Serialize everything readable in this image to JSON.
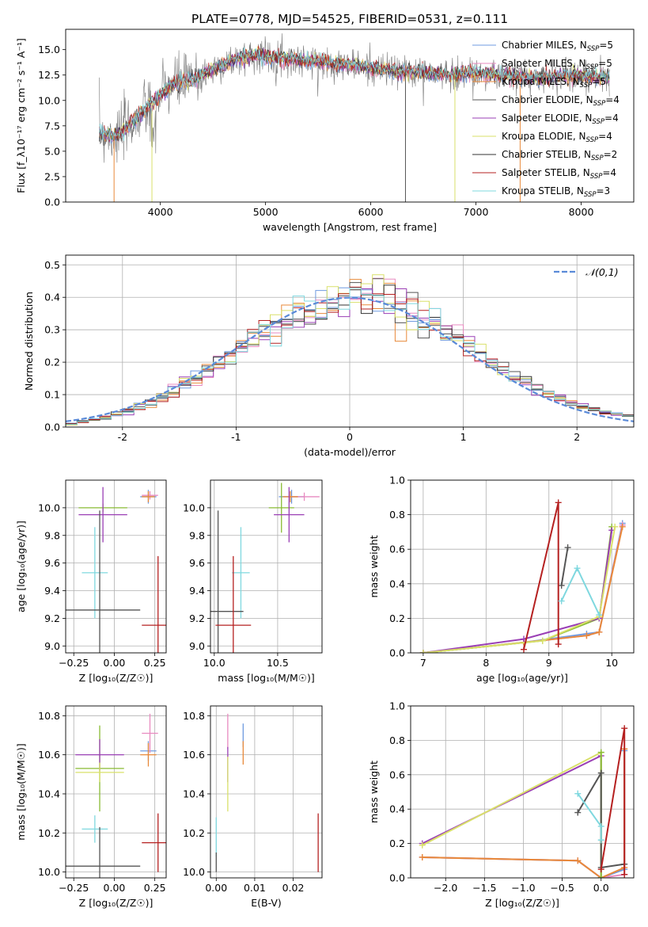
{
  "figure_title": "PLATE=0778, MJD=54525, FIBERID=0531, z=0.111",
  "colors": {
    "chabrier_miles": "#6f9be0",
    "salpeter_miles": "#e88ac0",
    "kroupa_miles": "#e8893a",
    "chabrier_elodie": "#555555",
    "salpeter_elodie": "#9a3fb5",
    "kroupa_elodie": "#d9e06a",
    "chabrier_stelib": "#333333",
    "salpeter_stelib": "#b52020",
    "kroupa_stelib": "#7fd8df",
    "green": "#88bb33",
    "normal_curve": "#5a8ad8"
  },
  "chart_data": [
    {
      "id": "spectrum",
      "type": "line",
      "title": "",
      "xlabel": "wavelength [Angstrom, rest frame]",
      "ylabel": "Flux [f_λ10⁻¹⁷ erg cm⁻² s⁻¹ A⁻¹]",
      "xlim": [
        3100,
        8500
      ],
      "ylim": [
        0,
        17
      ],
      "xticks": [
        4000,
        5000,
        6000,
        7000,
        8000
      ],
      "yticks": [
        0.0,
        2.5,
        5.0,
        7.5,
        10.0,
        12.5,
        15.0
      ],
      "grid": false,
      "legend_position": "upper right",
      "legend": [
        {
          "label": "Chabrier MILES, N",
          "sub": "SSP",
          "tail": "=5",
          "color": "#6f9be0"
        },
        {
          "label": "Salpeter MILES, N",
          "sub": "SSP",
          "tail": "=5",
          "color": "#e88ac0"
        },
        {
          "label": "Kroupa MILES, N",
          "sub": "SSP",
          "tail": "=5",
          "color": "#e8893a"
        },
        {
          "label": "Chabrier ELODIE, N",
          "sub": "SSP",
          "tail": "=4",
          "color": "#555555"
        },
        {
          "label": "Salpeter ELODIE, N",
          "sub": "SSP",
          "tail": "=4",
          "color": "#9a3fb5"
        },
        {
          "label": "Kroupa ELODIE, N",
          "sub": "SSP",
          "tail": "=4",
          "color": "#d9e06a"
        },
        {
          "label": "Chabrier STELIB, N",
          "sub": "SSP",
          "tail": "=2",
          "color": "#333333"
        },
        {
          "label": "Salpeter STELIB, N",
          "sub": "SSP",
          "tail": "=4",
          "color": "#b52020"
        },
        {
          "label": "Kroupa STELIB, N",
          "sub": "SSP",
          "tail": "=3",
          "color": "#7fd8df"
        }
      ],
      "envelope": {
        "x": [
          3420,
          3600,
          3800,
          3950,
          4100,
          4300,
          4500,
          4700,
          4900,
          5100,
          5300,
          5500,
          5800,
          6100,
          6400,
          6700,
          7000,
          7300,
          7600,
          7900,
          8200,
          8270
        ],
        "y": [
          6.8,
          6.5,
          8.5,
          10.0,
          11.5,
          12.0,
          13.0,
          14.0,
          14.5,
          14.2,
          14.0,
          13.8,
          13.5,
          13.0,
          12.8,
          12.5,
          12.7,
          12.4,
          12.2,
          12.5,
          12.3,
          12.2
        ]
      },
      "dropouts": [
        {
          "x": 3560,
          "color": "#e8893a"
        },
        {
          "x": 3920,
          "color": "#d9e06a"
        },
        {
          "x": 6330,
          "color": "#555555"
        },
        {
          "x": 6800,
          "color": "#d9e06a"
        },
        {
          "x": 7420,
          "color": "#e8893a"
        }
      ]
    },
    {
      "id": "residuals",
      "type": "histogram",
      "xlabel": "(data-model)/error",
      "ylabel": "Normed distribution",
      "xlim": [
        -2.5,
        2.5
      ],
      "ylim": [
        0,
        0.53
      ],
      "xticks": [
        -2,
        -1,
        0,
        1,
        2
      ],
      "yticks": [
        0.0,
        0.1,
        0.2,
        0.3,
        0.4,
        0.5
      ],
      "grid": true,
      "legend_position": "upper right",
      "legend": [
        {
          "label": "𝒩(0,1)",
          "color": "#5a8ad8",
          "style": "dashed"
        }
      ],
      "bin_width": 0.1
    },
    {
      "id": "age_vs_Z",
      "type": "errorbar",
      "xlabel": "Z [log₁₀(Z/Z☉)]",
      "ylabel": "age  [log₁₀(age/yr)]",
      "xlim": [
        -0.3,
        0.32
      ],
      "ylim": [
        8.95,
        10.2
      ],
      "xticks": [
        -0.25,
        0.0,
        0.25
      ],
      "xticklabels": [
        "−0.25",
        "0.00",
        "0.25"
      ],
      "yticks": [
        9.0,
        9.2,
        9.4,
        9.6,
        9.8,
        10.0
      ],
      "grid": true,
      "points": [
        {
          "x": 0.21,
          "y": 10.08,
          "xerr": 0.05,
          "yerr": 0.05,
          "color": "#6f9be0"
        },
        {
          "x": 0.22,
          "y": 10.09,
          "xerr": 0.05,
          "yerr": 0.03,
          "color": "#e88ac0"
        },
        {
          "x": 0.21,
          "y": 10.08,
          "xerr": 0.04,
          "yerr": 0.04,
          "color": "#e8893a"
        },
        {
          "x": -0.07,
          "y": 10.0,
          "xerr": 0.15,
          "yerr": 0.03,
          "color": "#88bb33"
        },
        {
          "x": -0.07,
          "y": 9.95,
          "xerr": 0.15,
          "yerr": 0.2,
          "color": "#9a3fb5"
        },
        {
          "x": -0.12,
          "y": 9.53,
          "xerr": 0.08,
          "yerr": 0.33,
          "color": "#7fd8df"
        },
        {
          "x": -0.09,
          "y": 9.26,
          "xerr": 0.25,
          "yerr": 0.72,
          "color": "#555555"
        },
        {
          "x": 0.27,
          "y": 9.15,
          "xerr": 0.1,
          "yerr": 0.5,
          "color": "#b52020"
        }
      ]
    },
    {
      "id": "age_vs_mass",
      "type": "errorbar",
      "xlabel": "mass [log₁₀(M/M☉)]",
      "ylabel": "",
      "xlim": [
        9.97,
        10.85
      ],
      "ylim": [
        8.95,
        10.2
      ],
      "xticks": [
        10.0,
        10.5
      ],
      "xticklabels": [
        "10.0",
        "10.5"
      ],
      "yticks": [
        9.0,
        9.2,
        9.4,
        9.6,
        9.8,
        10.0
      ],
      "grid": true,
      "points": [
        {
          "x": 10.61,
          "y": 10.08,
          "xerr": 0.1,
          "yerr": 0.05,
          "color": "#6f9be0"
        },
        {
          "x": 10.71,
          "y": 10.08,
          "xerr": 0.12,
          "yerr": 0.03,
          "color": "#e88ac0"
        },
        {
          "x": 10.6,
          "y": 10.08,
          "xerr": 0.06,
          "yerr": 0.04,
          "color": "#e8893a"
        },
        {
          "x": 10.53,
          "y": 10.0,
          "xerr": 0.1,
          "yerr": 0.18,
          "color": "#88bb33"
        },
        {
          "x": 10.59,
          "y": 9.95,
          "xerr": 0.12,
          "yerr": 0.2,
          "color": "#9a3fb5"
        },
        {
          "x": 10.21,
          "y": 9.53,
          "xerr": 0.07,
          "yerr": 0.33,
          "color": "#7fd8df"
        },
        {
          "x": 10.03,
          "y": 9.25,
          "xerr": 0.2,
          "yerr": 0.73,
          "color": "#555555"
        },
        {
          "x": 10.15,
          "y": 9.15,
          "xerr": 0.14,
          "yerr": 0.5,
          "color": "#b52020"
        }
      ]
    },
    {
      "id": "mass_weight_vs_age",
      "type": "line",
      "xlabel": "age  [log₁₀(age/yr)]",
      "ylabel": "mass weight",
      "xlim": [
        6.8,
        10.35
      ],
      "ylim": [
        0,
        1.0
      ],
      "xticks": [
        7,
        8,
        9,
        10
      ],
      "yticks": [
        0.0,
        0.2,
        0.4,
        0.6,
        0.8,
        1.0
      ],
      "grid": true,
      "series": [
        {
          "color": "#6f9be0",
          "x": [
            7.0,
            8.6,
            9.6,
            9.8,
            10.17
          ],
          "y": [
            0.0,
            0.06,
            0.11,
            0.12,
            0.75
          ]
        },
        {
          "color": "#e88ac0",
          "x": [
            7.0,
            8.6,
            9.6,
            9.8,
            10.17
          ],
          "y": [
            0.0,
            0.06,
            0.1,
            0.12,
            0.74
          ]
        },
        {
          "color": "#e8893a",
          "x": [
            7.0,
            8.6,
            9.6,
            9.8,
            10.17
          ],
          "y": [
            0.0,
            0.06,
            0.1,
            0.12,
            0.73
          ]
        },
        {
          "color": "#88bb33",
          "x": [
            7.0,
            8.9,
            9.8,
            10.0
          ],
          "y": [
            0.0,
            0.07,
            0.2,
            0.73
          ]
        },
        {
          "color": "#9a3fb5",
          "x": [
            7.0,
            8.6,
            9.8,
            10.0
          ],
          "y": [
            0.0,
            0.08,
            0.2,
            0.71
          ]
        },
        {
          "color": "#d9e06a",
          "x": [
            7.0,
            8.9,
            9.8,
            10.05
          ],
          "y": [
            0.0,
            0.07,
            0.21,
            0.73
          ]
        },
        {
          "color": "#555555",
          "x": [
            9.2,
            9.3
          ],
          "y": [
            0.39,
            0.61
          ]
        },
        {
          "color": "#b52020",
          "x": [
            8.6,
            9.15,
            9.15
          ],
          "y": [
            0.02,
            0.87,
            0.05
          ]
        },
        {
          "color": "#7fd8df",
          "x": [
            9.2,
            9.45,
            9.8
          ],
          "y": [
            0.3,
            0.49,
            0.22
          ]
        }
      ]
    },
    {
      "id": "mass_vs_Z",
      "type": "errorbar",
      "xlabel": "Z [log₁₀(Z/Z☉)]",
      "ylabel": "mass [log₁₀(M/M☉)]",
      "xlim": [
        -0.3,
        0.32
      ],
      "ylim": [
        9.97,
        10.85
      ],
      "xticks": [
        -0.25,
        0.0,
        0.25
      ],
      "xticklabels": [
        "−0.25",
        "0.00",
        "0.25"
      ],
      "yticks": [
        10.0,
        10.2,
        10.4,
        10.6,
        10.8
      ],
      "grid": true,
      "points": [
        {
          "x": 0.21,
          "y": 10.62,
          "xerr": 0.05,
          "yerr": 0.05,
          "color": "#6f9be0"
        },
        {
          "x": 0.22,
          "y": 10.71,
          "xerr": 0.05,
          "yerr": 0.1,
          "color": "#e88ac0"
        },
        {
          "x": 0.21,
          "y": 10.6,
          "xerr": 0.05,
          "yerr": 0.06,
          "color": "#e8893a"
        },
        {
          "x": -0.09,
          "y": 10.53,
          "xerr": 0.15,
          "yerr": 0.22,
          "color": "#88bb33"
        },
        {
          "x": -0.09,
          "y": 10.6,
          "xerr": 0.15,
          "yerr": 0.08,
          "color": "#9a3fb5"
        },
        {
          "x": -0.09,
          "y": 10.51,
          "xerr": 0.15,
          "yerr": 0.05,
          "color": "#d9e06a"
        },
        {
          "x": -0.12,
          "y": 10.22,
          "xerr": 0.08,
          "yerr": 0.07,
          "color": "#7fd8df"
        },
        {
          "x": -0.09,
          "y": 10.03,
          "xerr": 0.25,
          "yerr": 0.2,
          "color": "#555555"
        },
        {
          "x": 0.27,
          "y": 10.15,
          "xerr": 0.1,
          "yerr": 0.15,
          "color": "#b52020"
        }
      ]
    },
    {
      "id": "mass_vs_ebv",
      "type": "errorbar",
      "xlabel": "E(B-V)",
      "ylabel": "",
      "xlim": [
        -0.0015,
        0.0275
      ],
      "ylim": [
        9.97,
        10.85
      ],
      "xticks": [
        0.0,
        0.01,
        0.02
      ],
      "xticklabels": [
        "0.00",
        "0.01",
        "0.02"
      ],
      "yticks": [
        10.0,
        10.2,
        10.4,
        10.6,
        10.8
      ],
      "grid": true,
      "points": [
        {
          "x": 0.007,
          "y": 10.7,
          "xerr": 0,
          "yerr": 0.06,
          "color": "#6f9be0"
        },
        {
          "x": 0.003,
          "y": 10.72,
          "xerr": 0,
          "yerr": 0.09,
          "color": "#e88ac0"
        },
        {
          "x": 0.007,
          "y": 10.61,
          "xerr": 0,
          "yerr": 0.06,
          "color": "#e8893a"
        },
        {
          "x": 0.003,
          "y": 10.55,
          "xerr": 0,
          "yerr": 0.09,
          "color": "#9a3fb5"
        },
        {
          "x": 0.003,
          "y": 10.45,
          "xerr": 0,
          "yerr": 0.14,
          "color": "#d9e06a"
        },
        {
          "x": 0.0,
          "y": 10.18,
          "xerr": 0,
          "yerr": 0.1,
          "color": "#7fd8df"
        },
        {
          "x": 0.0,
          "y": 10.05,
          "xerr": 0,
          "yerr": 0.05,
          "color": "#555555"
        },
        {
          "x": 0.0265,
          "y": 10.15,
          "xerr": 0,
          "yerr": 0.15,
          "color": "#b52020"
        }
      ]
    },
    {
      "id": "mass_weight_vs_Z",
      "type": "line",
      "xlabel": "Z [log₁₀(Z/Z☉)]",
      "ylabel": "mass weight",
      "xlim": [
        -2.45,
        0.42
      ],
      "ylim": [
        0,
        1.0
      ],
      "xticks": [
        -2.0,
        -1.5,
        -1.0,
        -0.5,
        0.0
      ],
      "xticklabels": [
        "−2.0",
        "−1.5",
        "−1.0",
        "−0.5",
        "0.0"
      ],
      "yticks": [
        0.0,
        0.2,
        0.4,
        0.6,
        0.8,
        1.0
      ],
      "grid": true,
      "series": [
        {
          "color": "#6f9be0",
          "x": [
            -2.3,
            -0.3,
            0.0,
            0.3,
            0.3
          ],
          "y": [
            0.12,
            0.1,
            0.0,
            0.05,
            0.74
          ]
        },
        {
          "color": "#e88ac0",
          "x": [
            -2.3,
            -0.3,
            0.0,
            0.3
          ],
          "y": [
            0.12,
            0.1,
            0.0,
            0.02
          ]
        },
        {
          "color": "#e8893a",
          "x": [
            -2.3,
            -0.3,
            0.0,
            0.3,
            0.3
          ],
          "y": [
            0.12,
            0.1,
            0.0,
            0.06,
            0.75
          ]
        },
        {
          "color": "#9a3fb5",
          "x": [
            -2.3,
            0.0,
            0.0
          ],
          "y": [
            0.2,
            0.71,
            0.0
          ]
        },
        {
          "color": "#d9e06a",
          "x": [
            -2.3,
            0.0,
            0.0
          ],
          "y": [
            0.19,
            0.73,
            0.0
          ]
        },
        {
          "color": "#88bb33",
          "x": [
            0.0,
            0.0
          ],
          "y": [
            0.73,
            0.0
          ]
        },
        {
          "color": "#555555",
          "x": [
            -0.3,
            0.0,
            0.0,
            0.3
          ],
          "y": [
            0.38,
            0.61,
            0.06,
            0.08
          ]
        },
        {
          "color": "#b52020",
          "x": [
            0.0,
            0.3,
            0.3
          ],
          "y": [
            0.05,
            0.87,
            0.02
          ]
        },
        {
          "color": "#7fd8df",
          "x": [
            -0.3,
            0.0,
            0.0
          ],
          "y": [
            0.49,
            0.3,
            0.22
          ]
        }
      ]
    }
  ]
}
